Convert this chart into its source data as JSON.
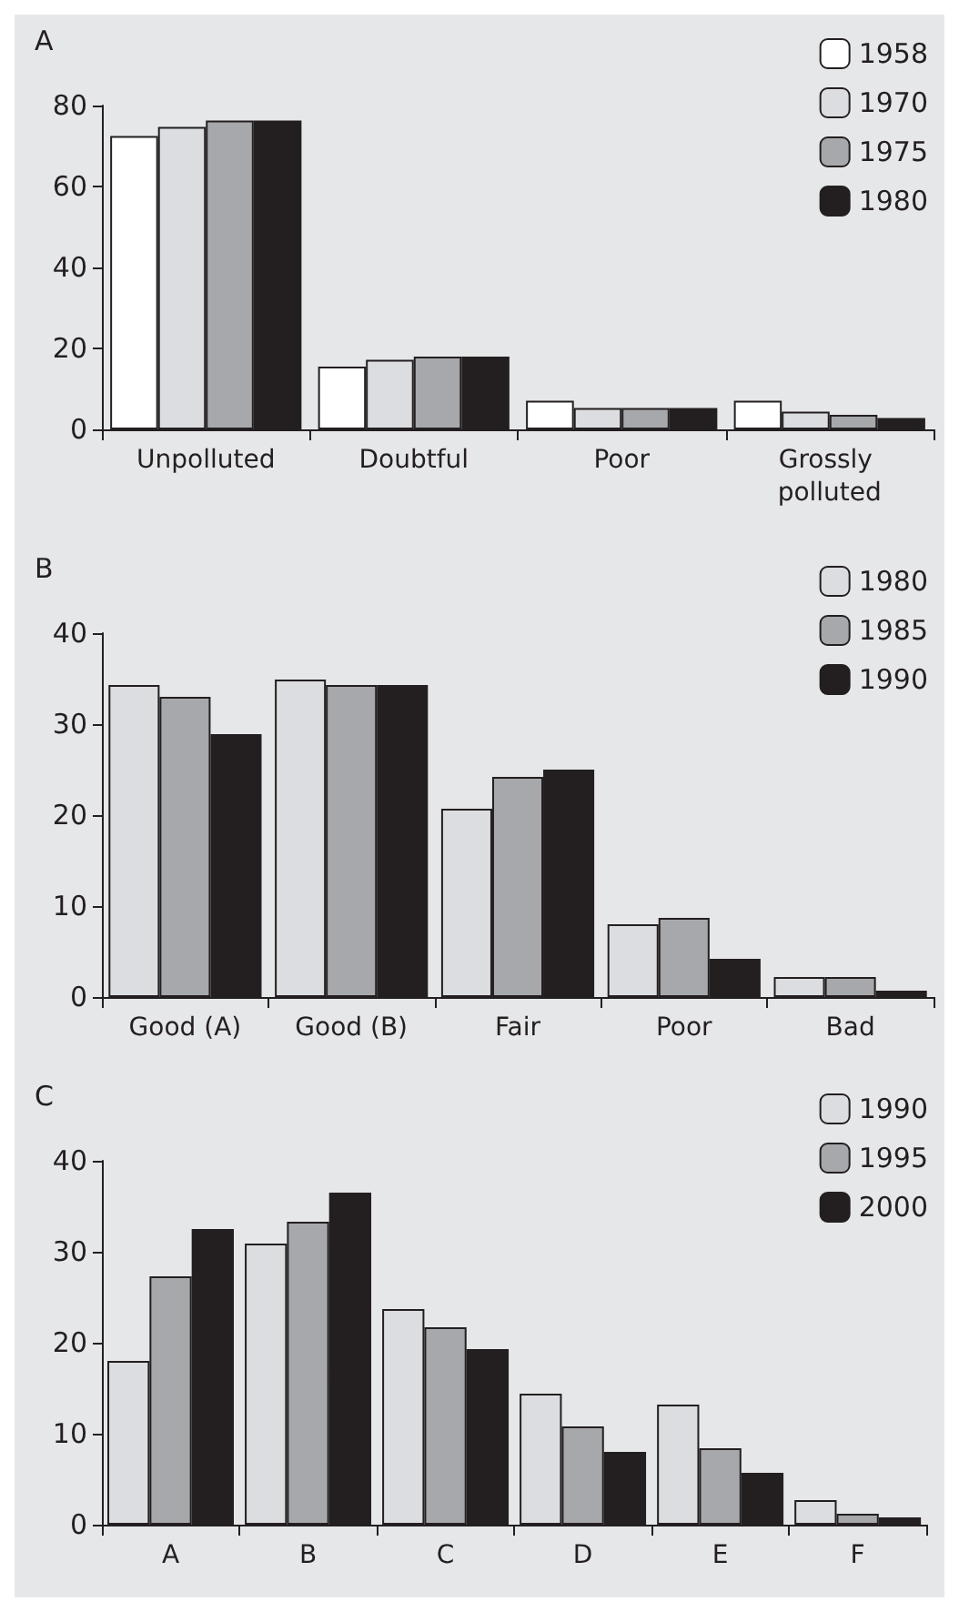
{
  "chart_data": [
    {
      "type": "bar",
      "title": "A",
      "categories": [
        "Unpolluted",
        "Doubtful",
        "Poor",
        "Grossly polluted"
      ],
      "series": [
        {
          "name": "1958",
          "color": "#ffffff",
          "values": [
            72.5,
            15.5,
            7.1,
            7.1
          ]
        },
        {
          "name": "1970",
          "color": "#dcdde0",
          "values": [
            74.7,
            17.2,
            5.3,
            4.4
          ]
        },
        {
          "name": "1975",
          "color": "#a7a8ab",
          "values": [
            76.3,
            18,
            5.3,
            3.6
          ]
        },
        {
          "name": "1980",
          "color": "#231f20",
          "values": [
            76.3,
            18,
            5.3,
            2.8
          ]
        }
      ],
      "ylim": [
        0,
        80
      ],
      "yticks": [
        0,
        20,
        40,
        60,
        80
      ],
      "grid": false,
      "legend": "top right"
    },
    {
      "type": "bar",
      "title": "B",
      "categories": [
        "Good (A)",
        "Good (B)",
        "Fair",
        "Poor",
        "Bad"
      ],
      "series": [
        {
          "name": "1980",
          "color": "#dcdde0",
          "values": [
            34.3,
            34.9,
            20.7,
            8.0,
            2.2
          ]
        },
        {
          "name": "1985",
          "color": "#a7a8ab",
          "values": [
            33.0,
            34.3,
            24.2,
            8.7,
            2.2
          ]
        },
        {
          "name": "1990",
          "color": "#231f20",
          "values": [
            28.9,
            34.3,
            25.0,
            4.2,
            0.7
          ]
        }
      ],
      "ylim": [
        0,
        40
      ],
      "yticks": [
        0,
        10,
        20,
        30,
        40
      ],
      "grid": false,
      "legend": "top right"
    },
    {
      "type": "bar",
      "title": "C",
      "categories": [
        "A",
        "B",
        "C",
        "D",
        "E",
        "F"
      ],
      "series": [
        {
          "name": "1990",
          "color": "#dcdde0",
          "values": [
            18.0,
            30.9,
            23.7,
            14.4,
            13.2,
            2.7
          ]
        },
        {
          "name": "1995",
          "color": "#a7a8ab",
          "values": [
            27.3,
            33.3,
            21.7,
            10.8,
            8.4,
            1.2
          ]
        },
        {
          "name": "2000",
          "color": "#231f20",
          "values": [
            32.5,
            36.5,
            19.3,
            8.0,
            5.7,
            0.8
          ]
        }
      ],
      "ylim": [
        0,
        40
      ],
      "yticks": [
        0,
        10,
        20,
        30,
        40
      ],
      "grid": false,
      "legend": "top right"
    }
  ]
}
